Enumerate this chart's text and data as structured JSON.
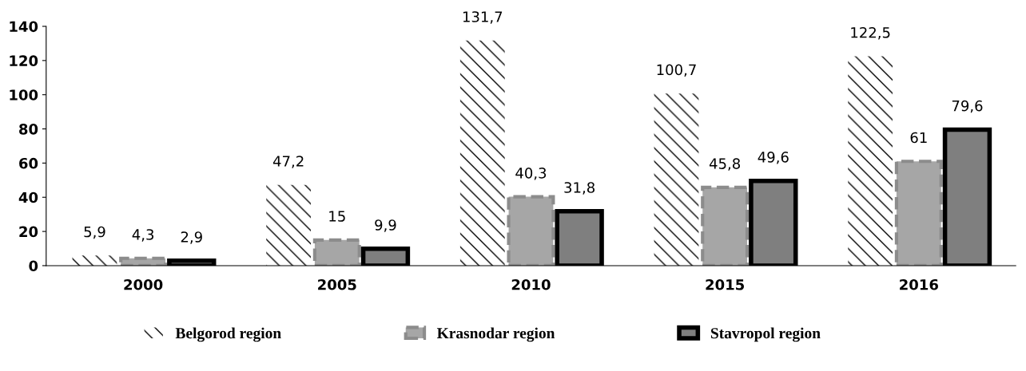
{
  "chart_data": {
    "type": "bar",
    "categories": [
      "2000",
      "2005",
      "2010",
      "2015",
      "2016"
    ],
    "series": [
      {
        "name": "Belgorod region",
        "color": "#000000",
        "values": [
          5.9,
          47.2,
          131.7,
          100.7,
          122.5
        ],
        "value_labels": [
          "5,9",
          "47,2",
          "131,7",
          "100,7",
          "122,5"
        ]
      },
      {
        "name": "Krasnodar region",
        "color": "#a6a6a6",
        "values": [
          4.3,
          15,
          40.3,
          45.8,
          61
        ],
        "value_labels": [
          "4,3",
          "15",
          "40,3",
          "45,8",
          "61"
        ]
      },
      {
        "name": "Stavropol region",
        "color": "#7f7f7f",
        "values": [
          2.9,
          9.9,
          31.8,
          49.6,
          79.6
        ],
        "value_labels": [
          "2,9",
          "9,9",
          "31,8",
          "49,6",
          "79,6"
        ]
      }
    ],
    "ylim": [
      0,
      140
    ],
    "yticks": [
      0,
      20,
      40,
      60,
      80,
      100,
      120,
      140
    ],
    "grid": false,
    "legend": "bottom"
  }
}
